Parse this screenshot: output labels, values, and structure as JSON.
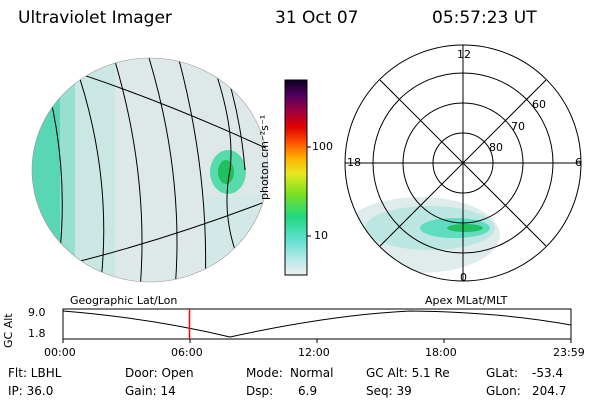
{
  "header": {
    "instrument": "Ultraviolet Imager",
    "date": "31 Oct 07",
    "time": "05:57:23 UT"
  },
  "colorbar": {
    "unit_label": "photon cm⁻²s⁻¹",
    "ticks": [
      "100",
      "10"
    ]
  },
  "geo_panel": {
    "caption": "Geographic Lat/Lon"
  },
  "polar_panel": {
    "caption": "Apex MLat/MLT",
    "mlt_labels": [
      "12",
      "18",
      "6",
      "0"
    ],
    "mlat_labels": [
      "60",
      "70",
      "80"
    ]
  },
  "altitude_plot": {
    "ylabel": "GC Alt",
    "yticks": [
      "9.0",
      "1.8"
    ],
    "xticks": [
      "00:00",
      "06:00",
      "12:00",
      "18:00",
      "23:59"
    ],
    "current_time_fraction": 0.249
  },
  "footer": {
    "row1": {
      "filter": "Flt: LBHL",
      "door": "Door: Open",
      "mode_label": "Mode:",
      "mode_value": "Normal",
      "gc_alt": "GC Alt: 5.1 Re",
      "glat_label": "GLat:",
      "glat_value": "-53.4"
    },
    "row2": {
      "ip": "IP: 36.0",
      "gain": "Gain: 14",
      "dsp_label": "Dsp:",
      "dsp_value": "6.9",
      "seq": "Seq: 39",
      "glon_label": "GLon:",
      "glon_value": "204.7"
    }
  },
  "colors": {
    "aurora_low": "#a8e8e0",
    "aurora_mid": "#40d8c0",
    "aurora_high": "#20c060",
    "time_marker": "#ff0000"
  }
}
